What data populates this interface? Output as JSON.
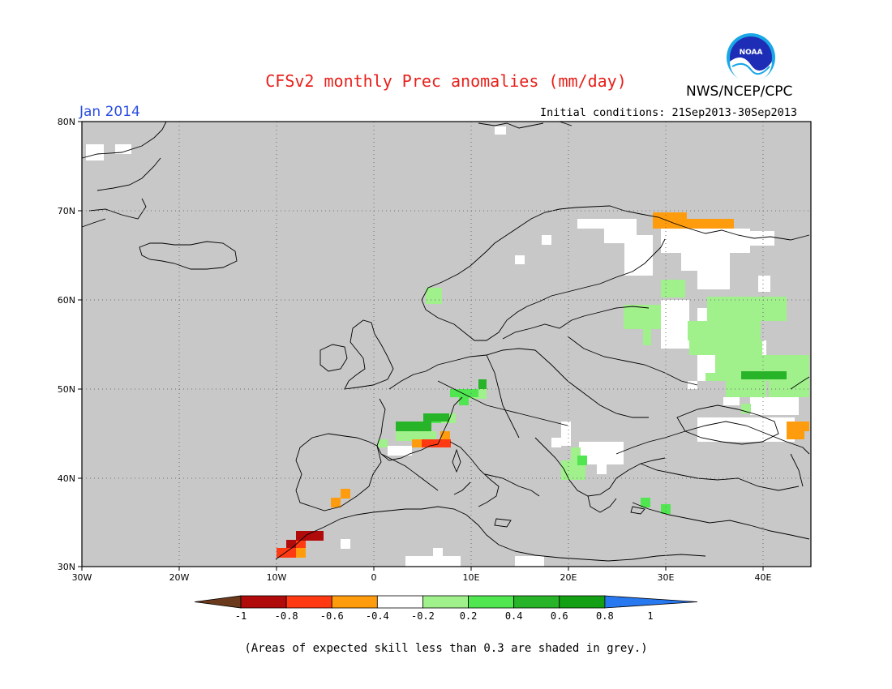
{
  "header": {
    "title": "CFSv2 monthly Prec anomalies (mm/day)",
    "org": "NWS/NCEP/CPC",
    "month": "Jan 2014",
    "initial_conditions": "Initial conditions: 21Sep2013-30Sep2013",
    "logo_text": "NOAA"
  },
  "map": {
    "background_color": "#c8c8c8",
    "lat_labels": [
      "80N",
      "70N",
      "60N",
      "50N",
      "40N",
      "30N"
    ],
    "lon_labels": [
      "30W",
      "20W",
      "10W",
      "0",
      "10E",
      "20E",
      "30E",
      "40E"
    ]
  },
  "legend": {
    "tick_labels": [
      "-1",
      "-0.8",
      "-0.6",
      "-0.4",
      "-0.2",
      "0.2",
      "0.4",
      "0.6",
      "0.8",
      "1"
    ],
    "colors": [
      "#6b3a1c",
      "#b00a0a",
      "#ff3a12",
      "#ff9c0e",
      "#ffffff",
      "#a0f08c",
      "#50e650",
      "#28b428",
      "#14a014",
      "#2878f0"
    ]
  },
  "footnote": "(Areas of expected skill less than 0.3 are shaded in grey.)"
}
